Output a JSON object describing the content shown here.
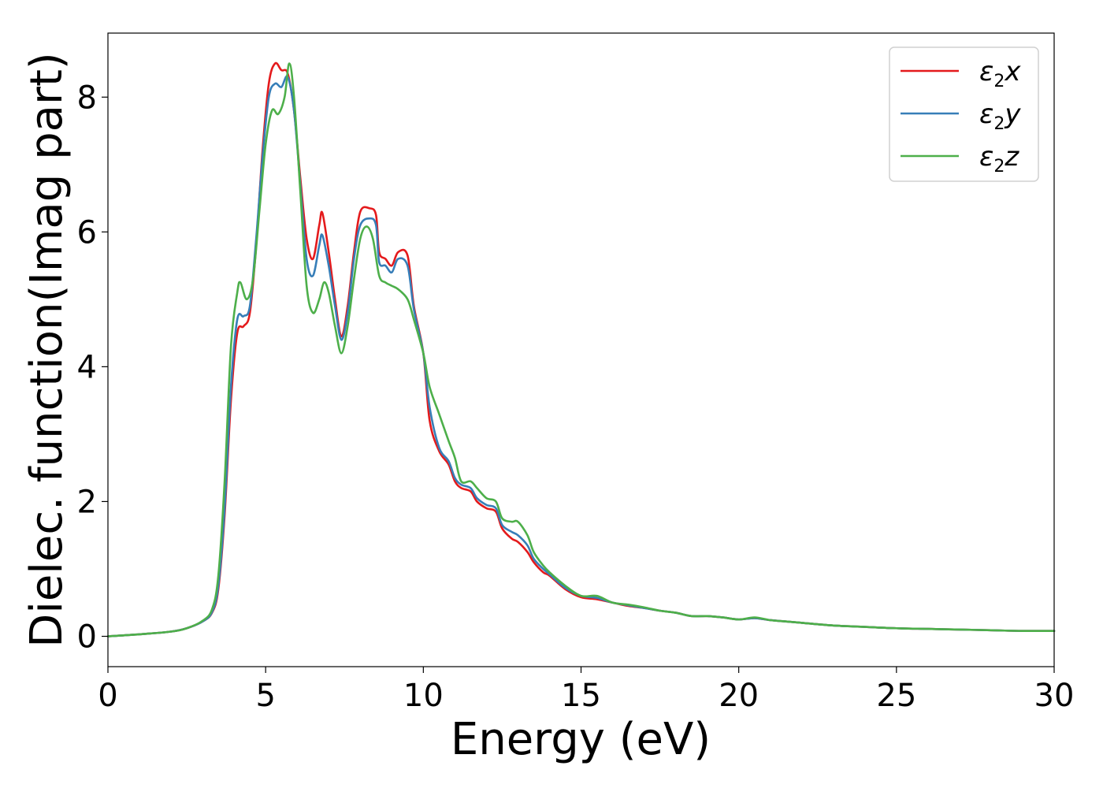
{
  "chart_data": {
    "type": "line",
    "xlabel": "Energy (eV)",
    "ylabel": "Dielec. function(Imag part)",
    "xlim": [
      0,
      30
    ],
    "ylim": [
      -0.45,
      8.95
    ],
    "xticks": [
      0,
      5,
      10,
      15,
      20,
      25,
      30
    ],
    "yticks": [
      0,
      2,
      4,
      6,
      8
    ],
    "grid": false,
    "legend_position": "top-right",
    "series": [
      {
        "name": "ε2x",
        "legend": {
          "base": "ε",
          "sub": "2",
          "axis": "x"
        },
        "color": "#e41a1c",
        "points": [
          [
            0,
            0.0
          ],
          [
            1,
            0.03
          ],
          [
            2,
            0.07
          ],
          [
            2.5,
            0.12
          ],
          [
            3,
            0.22
          ],
          [
            3.3,
            0.35
          ],
          [
            3.5,
            0.7
          ],
          [
            3.7,
            1.8
          ],
          [
            3.9,
            3.5
          ],
          [
            4.1,
            4.5
          ],
          [
            4.3,
            4.6
          ],
          [
            4.5,
            4.8
          ],
          [
            4.7,
            5.8
          ],
          [
            4.9,
            7.2
          ],
          [
            5.1,
            8.2
          ],
          [
            5.3,
            8.5
          ],
          [
            5.5,
            8.4
          ],
          [
            5.7,
            8.35
          ],
          [
            5.9,
            7.8
          ],
          [
            6.1,
            6.8
          ],
          [
            6.3,
            5.9
          ],
          [
            6.5,
            5.6
          ],
          [
            6.7,
            6.1
          ],
          [
            6.8,
            6.28
          ],
          [
            7.0,
            5.7
          ],
          [
            7.2,
            5.0
          ],
          [
            7.4,
            4.45
          ],
          [
            7.6,
            4.9
          ],
          [
            7.8,
            5.7
          ],
          [
            8.0,
            6.3
          ],
          [
            8.3,
            6.35
          ],
          [
            8.5,
            6.25
          ],
          [
            8.6,
            5.7
          ],
          [
            8.8,
            5.6
          ],
          [
            9.0,
            5.5
          ],
          [
            9.2,
            5.7
          ],
          [
            9.5,
            5.65
          ],
          [
            9.7,
            4.9
          ],
          [
            10.0,
            4.2
          ],
          [
            10.2,
            3.2
          ],
          [
            10.5,
            2.75
          ],
          [
            10.8,
            2.55
          ],
          [
            11.0,
            2.3
          ],
          [
            11.2,
            2.2
          ],
          [
            11.5,
            2.15
          ],
          [
            11.7,
            2.0
          ],
          [
            12.0,
            1.9
          ],
          [
            12.3,
            1.85
          ],
          [
            12.5,
            1.6
          ],
          [
            12.8,
            1.45
          ],
          [
            13.0,
            1.4
          ],
          [
            13.3,
            1.25
          ],
          [
            13.5,
            1.1
          ],
          [
            13.8,
            0.95
          ],
          [
            14.0,
            0.9
          ],
          [
            14.5,
            0.7
          ],
          [
            15.0,
            0.58
          ],
          [
            15.5,
            0.55
          ],
          [
            16.0,
            0.5
          ],
          [
            16.5,
            0.45
          ],
          [
            17.0,
            0.42
          ],
          [
            17.5,
            0.38
          ],
          [
            18.0,
            0.35
          ],
          [
            18.5,
            0.3
          ],
          [
            19.0,
            0.3
          ],
          [
            19.5,
            0.28
          ],
          [
            20.0,
            0.25
          ],
          [
            20.5,
            0.27
          ],
          [
            21.0,
            0.24
          ],
          [
            21.5,
            0.22
          ],
          [
            22.0,
            0.2
          ],
          [
            23.0,
            0.16
          ],
          [
            24.0,
            0.14
          ],
          [
            25.0,
            0.12
          ],
          [
            26.0,
            0.11
          ],
          [
            27.0,
            0.1
          ],
          [
            28.0,
            0.09
          ],
          [
            29.0,
            0.08
          ],
          [
            30.0,
            0.08
          ]
        ]
      },
      {
        "name": "ε2y",
        "legend": {
          "base": "ε",
          "sub": "2",
          "axis": "y"
        },
        "color": "#377eb8",
        "points": [
          [
            0,
            0.0
          ],
          [
            1,
            0.03
          ],
          [
            2,
            0.07
          ],
          [
            2.5,
            0.12
          ],
          [
            3,
            0.22
          ],
          [
            3.3,
            0.36
          ],
          [
            3.5,
            0.75
          ],
          [
            3.7,
            1.9
          ],
          [
            3.9,
            3.7
          ],
          [
            4.1,
            4.7
          ],
          [
            4.3,
            4.75
          ],
          [
            4.5,
            4.9
          ],
          [
            4.7,
            5.9
          ],
          [
            4.9,
            7.1
          ],
          [
            5.1,
            8.0
          ],
          [
            5.3,
            8.2
          ],
          [
            5.5,
            8.15
          ],
          [
            5.7,
            8.3
          ],
          [
            5.9,
            7.8
          ],
          [
            6.1,
            6.7
          ],
          [
            6.3,
            5.6
          ],
          [
            6.5,
            5.35
          ],
          [
            6.7,
            5.8
          ],
          [
            6.8,
            5.95
          ],
          [
            7.0,
            5.5
          ],
          [
            7.2,
            4.9
          ],
          [
            7.4,
            4.4
          ],
          [
            7.6,
            4.8
          ],
          [
            7.8,
            5.6
          ],
          [
            8.0,
            6.1
          ],
          [
            8.3,
            6.2
          ],
          [
            8.5,
            6.1
          ],
          [
            8.6,
            5.55
          ],
          [
            8.8,
            5.5
          ],
          [
            9.0,
            5.4
          ],
          [
            9.2,
            5.6
          ],
          [
            9.5,
            5.5
          ],
          [
            9.7,
            4.85
          ],
          [
            10.0,
            4.2
          ],
          [
            10.2,
            3.4
          ],
          [
            10.5,
            2.8
          ],
          [
            10.8,
            2.6
          ],
          [
            11.0,
            2.35
          ],
          [
            11.2,
            2.25
          ],
          [
            11.5,
            2.2
          ],
          [
            11.7,
            2.05
          ],
          [
            12.0,
            1.95
          ],
          [
            12.3,
            1.9
          ],
          [
            12.5,
            1.65
          ],
          [
            12.8,
            1.55
          ],
          [
            13.0,
            1.5
          ],
          [
            13.3,
            1.35
          ],
          [
            13.5,
            1.15
          ],
          [
            13.8,
            1.0
          ],
          [
            14.0,
            0.92
          ],
          [
            14.5,
            0.72
          ],
          [
            15.0,
            0.6
          ],
          [
            15.5,
            0.57
          ],
          [
            16.0,
            0.5
          ],
          [
            16.5,
            0.46
          ],
          [
            17.0,
            0.42
          ],
          [
            17.5,
            0.38
          ],
          [
            18.0,
            0.35
          ],
          [
            18.5,
            0.3
          ],
          [
            19.0,
            0.3
          ],
          [
            19.5,
            0.28
          ],
          [
            20.0,
            0.25
          ],
          [
            20.5,
            0.27
          ],
          [
            21.0,
            0.24
          ],
          [
            21.5,
            0.22
          ],
          [
            22.0,
            0.2
          ],
          [
            23.0,
            0.16
          ],
          [
            24.0,
            0.14
          ],
          [
            25.0,
            0.12
          ],
          [
            26.0,
            0.11
          ],
          [
            27.0,
            0.1
          ],
          [
            28.0,
            0.09
          ],
          [
            29.0,
            0.08
          ],
          [
            30.0,
            0.08
          ]
        ]
      },
      {
        "name": "ε2z",
        "legend": {
          "base": "ε",
          "sub": "2",
          "axis": "z"
        },
        "color": "#4daf4a",
        "points": [
          [
            0,
            0.0
          ],
          [
            1,
            0.03
          ],
          [
            2,
            0.07
          ],
          [
            2.5,
            0.12
          ],
          [
            3,
            0.23
          ],
          [
            3.3,
            0.4
          ],
          [
            3.5,
            0.9
          ],
          [
            3.7,
            2.3
          ],
          [
            3.9,
            4.3
          ],
          [
            4.1,
            5.1
          ],
          [
            4.2,
            5.25
          ],
          [
            4.4,
            5.0
          ],
          [
            4.6,
            5.3
          ],
          [
            4.8,
            6.3
          ],
          [
            5.0,
            7.3
          ],
          [
            5.2,
            7.8
          ],
          [
            5.4,
            7.75
          ],
          [
            5.6,
            8.0
          ],
          [
            5.75,
            8.5
          ],
          [
            5.9,
            8.0
          ],
          [
            6.1,
            6.6
          ],
          [
            6.3,
            5.2
          ],
          [
            6.5,
            4.8
          ],
          [
            6.7,
            5.0
          ],
          [
            6.85,
            5.25
          ],
          [
            7.0,
            5.1
          ],
          [
            7.2,
            4.6
          ],
          [
            7.4,
            4.2
          ],
          [
            7.6,
            4.6
          ],
          [
            7.8,
            5.3
          ],
          [
            8.0,
            5.9
          ],
          [
            8.2,
            6.08
          ],
          [
            8.4,
            5.9
          ],
          [
            8.6,
            5.35
          ],
          [
            8.8,
            5.25
          ],
          [
            9.0,
            5.2
          ],
          [
            9.2,
            5.15
          ],
          [
            9.5,
            5.0
          ],
          [
            9.7,
            4.7
          ],
          [
            10.0,
            4.2
          ],
          [
            10.2,
            3.7
          ],
          [
            10.5,
            3.3
          ],
          [
            10.8,
            2.9
          ],
          [
            11.0,
            2.65
          ],
          [
            11.2,
            2.3
          ],
          [
            11.5,
            2.3
          ],
          [
            11.7,
            2.2
          ],
          [
            12.0,
            2.05
          ],
          [
            12.3,
            2.0
          ],
          [
            12.5,
            1.75
          ],
          [
            12.8,
            1.7
          ],
          [
            13.0,
            1.7
          ],
          [
            13.3,
            1.5
          ],
          [
            13.5,
            1.25
          ],
          [
            13.8,
            1.05
          ],
          [
            14.0,
            0.95
          ],
          [
            14.5,
            0.75
          ],
          [
            15.0,
            0.6
          ],
          [
            15.5,
            0.6
          ],
          [
            16.0,
            0.5
          ],
          [
            16.5,
            0.47
          ],
          [
            17.0,
            0.43
          ],
          [
            17.5,
            0.38
          ],
          [
            18.0,
            0.35
          ],
          [
            18.5,
            0.3
          ],
          [
            19.0,
            0.3
          ],
          [
            19.5,
            0.28
          ],
          [
            20.0,
            0.25
          ],
          [
            20.5,
            0.28
          ],
          [
            21.0,
            0.24
          ],
          [
            21.5,
            0.22
          ],
          [
            22.0,
            0.2
          ],
          [
            23.0,
            0.16
          ],
          [
            24.0,
            0.14
          ],
          [
            25.0,
            0.12
          ],
          [
            26.0,
            0.11
          ],
          [
            27.0,
            0.1
          ],
          [
            28.0,
            0.09
          ],
          [
            29.0,
            0.08
          ],
          [
            30.0,
            0.08
          ]
        ]
      }
    ]
  }
}
